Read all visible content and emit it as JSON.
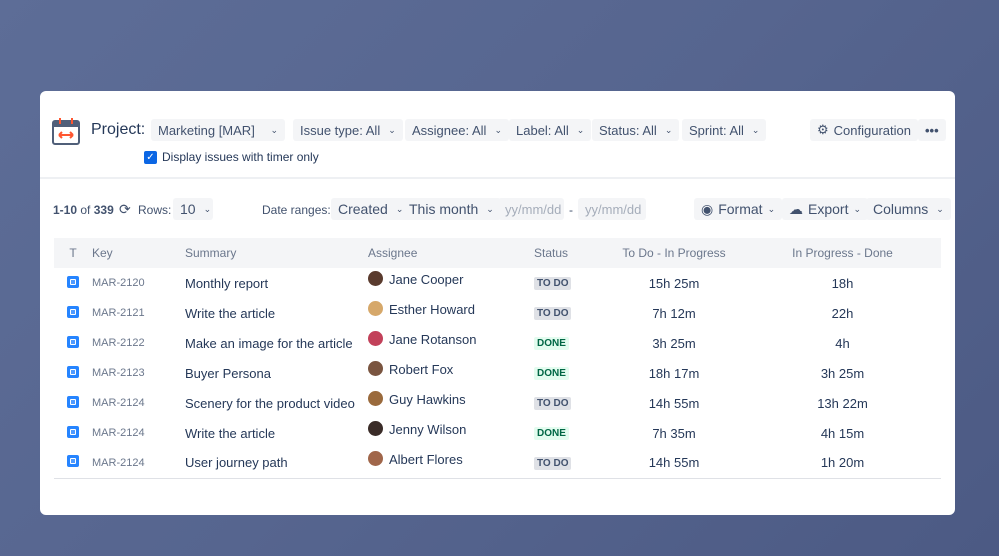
{
  "header": {
    "project_label": "Project:",
    "project": "Marketing [MAR]",
    "filters": [
      "Issue type: All",
      "Assignee: All",
      "Label: All",
      "Status: All",
      "Sprint: All"
    ],
    "configuration": "Configuration",
    "more": "•••",
    "timer_checkbox": {
      "label": "Display issues with timer only",
      "checked": true
    }
  },
  "toolbar": {
    "range_bold": "1-10",
    "range_of": " of ",
    "total": "339",
    "rows_label": "Rows:",
    "rows": "10",
    "date_ranges_label": "Date ranges:",
    "date_field": "Created",
    "period": "This month",
    "from_placeholder": "yy/mm/dd",
    "separator": "-",
    "to_placeholder": "yy/mm/dd",
    "format": "Format",
    "export": "Export",
    "columns": "Columns"
  },
  "table": {
    "columns": [
      "T",
      "Key",
      "Summary",
      "Assignee",
      "Status",
      "To Do - In Progress",
      "In Progress - Done"
    ],
    "rows": [
      {
        "key": "MAR-2120",
        "summary": "Monthly report",
        "assignee": "Jane Cooper",
        "status": "TO DO",
        "t1": "15h 25m",
        "t2": "18h",
        "avatar": "#5a3b2e"
      },
      {
        "key": "MAR-2121",
        "summary": "Write the article",
        "assignee": "Esther Howard",
        "status": "TO DO",
        "t1": "7h 12m",
        "t2": "22h",
        "avatar": "#d6a86a"
      },
      {
        "key": "MAR-2122",
        "summary": "Make an image for the article",
        "assignee": "Jane Rotanson",
        "status": "DONE",
        "t1": "3h 25m",
        "t2": "4h",
        "avatar": "#c2415a"
      },
      {
        "key": "MAR-2123",
        "summary": "Buyer Persona",
        "assignee": "Robert Fox",
        "status": "DONE",
        "t1": "18h 17m",
        "t2": "3h 25m",
        "avatar": "#7a5540"
      },
      {
        "key": "MAR-2124",
        "summary": "Scenery for the product video",
        "assignee": "Guy Hawkins",
        "status": "TO DO",
        "t1": "14h 55m",
        "t2": "13h 22m",
        "avatar": "#9a6a3c"
      },
      {
        "key": "MAR-2124",
        "summary": "Write the article",
        "assignee": "Jenny Wilson",
        "status": "DONE",
        "t1": "7h 35m",
        "t2": "4h 15m",
        "avatar": "#3a2c28"
      },
      {
        "key": "MAR-2124",
        "summary": "User journey path",
        "assignee": "Albert Flores",
        "status": "TO DO",
        "t1": "14h 55m",
        "t2": "1h 20m",
        "avatar": "#a0664a"
      }
    ]
  },
  "colors": {
    "accent": "#0b66e4",
    "todo_bg": "#dfe1e6",
    "done_text": "#006644"
  }
}
